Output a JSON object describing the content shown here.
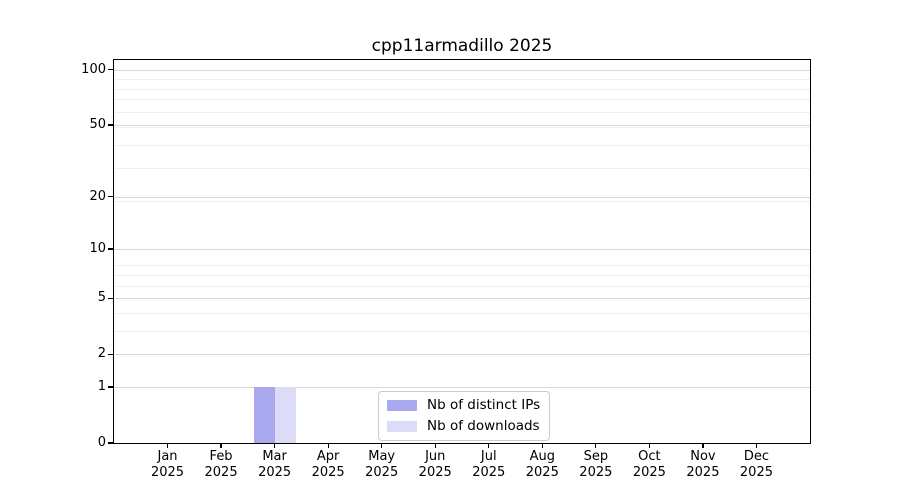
{
  "window": {
    "title": "cpp11armadillo 2025"
  },
  "chart_data": {
    "type": "bar",
    "title": "cpp11armadillo 2025",
    "categories": [
      "Jan",
      "Feb",
      "Mar",
      "Apr",
      "May",
      "Jun",
      "Jul",
      "Aug",
      "Sep",
      "Oct",
      "Nov",
      "Dec"
    ],
    "x_tick_year": "2025",
    "series": [
      {
        "name": "Nb of distinct IPs",
        "color": "#a9a9f0",
        "values": [
          0,
          0,
          1,
          0,
          0,
          0,
          0,
          0,
          0,
          0,
          0,
          0
        ]
      },
      {
        "name": "Nb of downloads",
        "color": "#dcdcf8",
        "values": [
          0,
          0,
          1,
          0,
          0,
          0,
          0,
          0,
          0,
          0,
          0,
          0
        ]
      }
    ],
    "y_ticks": [
      0,
      1,
      2,
      5,
      10,
      20,
      50,
      100
    ],
    "y_scale": "log1p",
    "ylim": [
      0,
      113
    ],
    "xlabel": "",
    "ylabel": "",
    "grid": "both",
    "legend": {
      "position": "lower-center",
      "items": [
        "Nb of distinct IPs",
        "Nb of downloads"
      ]
    },
    "colors": {
      "grid_major": "#d8d8d8",
      "grid_minor": "#f0f0f0",
      "axis": "#000000",
      "background": "#ffffff"
    }
  }
}
